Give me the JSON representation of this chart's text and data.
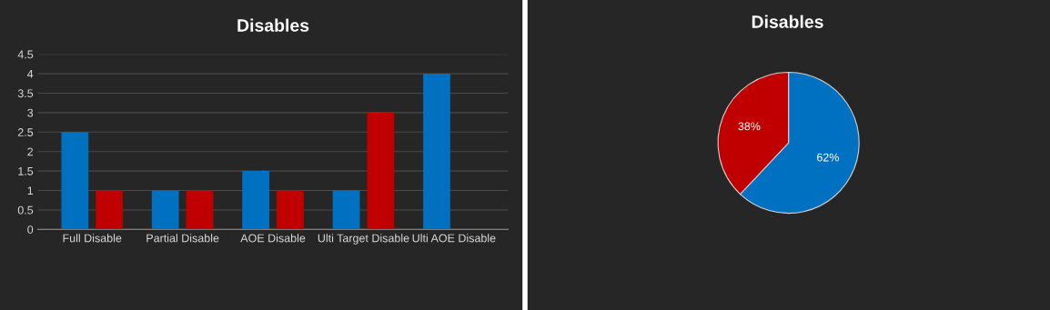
{
  "chart_data": [
    {
      "type": "bar",
      "title": "Disables",
      "categories": [
        "Full Disable",
        "Partial Disable",
        "AOE Disable",
        "Ulti Target Disable",
        "Ulti AOE Disable"
      ],
      "series": [
        {
          "color": "#0070c0",
          "values": [
            2.5,
            1,
            1.5,
            1,
            4
          ]
        },
        {
          "color": "#c00000",
          "values": [
            1,
            1,
            1,
            3,
            null
          ]
        }
      ],
      "ylim": [
        0,
        4.5
      ],
      "yticks": [
        0,
        0.5,
        1,
        1.5,
        2,
        2.5,
        3,
        3.5,
        4,
        4.5
      ],
      "grid": "y"
    },
    {
      "type": "pie",
      "title": "Disables",
      "categories": [
        null,
        null
      ],
      "values": [
        62,
        38
      ],
      "colors": [
        "#0070c0",
        "#c00000"
      ],
      "value_labels": [
        "62%",
        "38%"
      ]
    }
  ]
}
